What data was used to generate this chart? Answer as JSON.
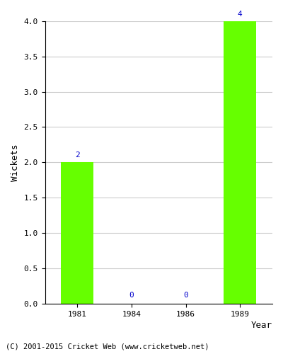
{
  "categories": [
    "1981",
    "1984",
    "1986",
    "1989"
  ],
  "values": [
    2,
    0,
    0,
    4
  ],
  "bar_color": "#66ff00",
  "bar_edge_color": "#66ff00",
  "title": "",
  "xlabel": "Year",
  "ylabel": "Wickets",
  "ylim": [
    0,
    4.0
  ],
  "yticks": [
    0.0,
    0.5,
    1.0,
    1.5,
    2.0,
    2.5,
    3.0,
    3.5,
    4.0
  ],
  "label_color": "#0000cc",
  "label_fontsize": 8,
  "axis_label_fontsize": 9,
  "tick_fontsize": 8,
  "footer_text": "(C) 2001-2015 Cricket Web (www.cricketweb.net)",
  "footer_fontsize": 7.5,
  "background_color": "#ffffff",
  "grid_color": "#cccccc",
  "bar_width": 0.6
}
